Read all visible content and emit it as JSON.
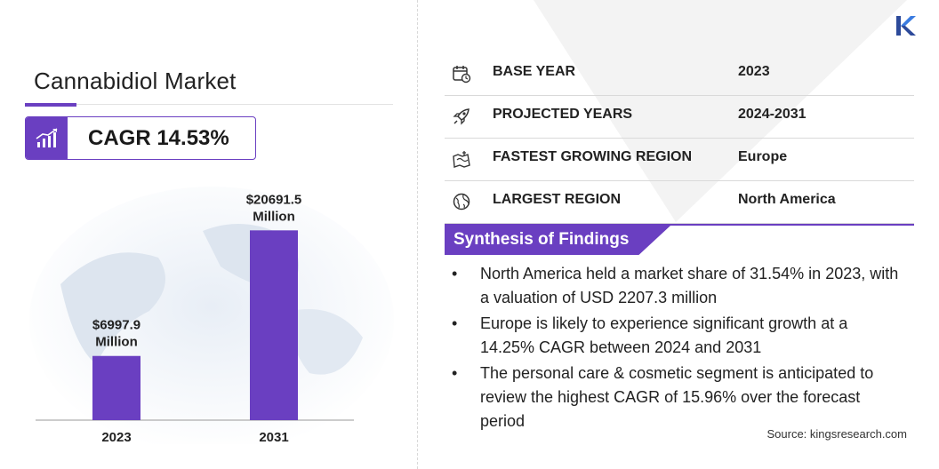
{
  "title": "Cannabidiol Market",
  "cagr": "CAGR 14.53%",
  "colors": {
    "accent": "#6a3fc1",
    "bar": "#6a3fc1"
  },
  "icons": [
    "chart-growth-icon",
    "calendar-icon",
    "rocket-icon",
    "region-map-icon",
    "globe-icon",
    "kings-research-logo-icon"
  ],
  "table": [
    {
      "label": "BASE YEAR",
      "value": "2023"
    },
    {
      "label": "PROJECTED YEARS",
      "value": "2024-2031"
    },
    {
      "label": "FASTEST GROWING REGION",
      "value": "Europe"
    },
    {
      "label": "LARGEST REGION",
      "value": "North America"
    }
  ],
  "synthesis": {
    "title": "Synthesis of Findings",
    "items": [
      "North America held a market share of 31.54% in 2023, with a valuation of USD 2207.3 million",
      "Europe is likely to experience significant growth at a 14.25% CAGR between 2024 and 2031",
      "The personal care & cosmetic segment is anticipated to review the highest CAGR of 15.96% over the forecast period"
    ]
  },
  "source": "Source:  kingsresearch.com",
  "chart_data": {
    "type": "bar",
    "categories": [
      "2023",
      "2031"
    ],
    "values": [
      6997.9,
      20691.5
    ],
    "data_labels": [
      [
        "$6997.9",
        "Million"
      ],
      [
        "$20691.5",
        "Million"
      ]
    ],
    "ylim": [
      0,
      24500
    ],
    "grid": false
  }
}
